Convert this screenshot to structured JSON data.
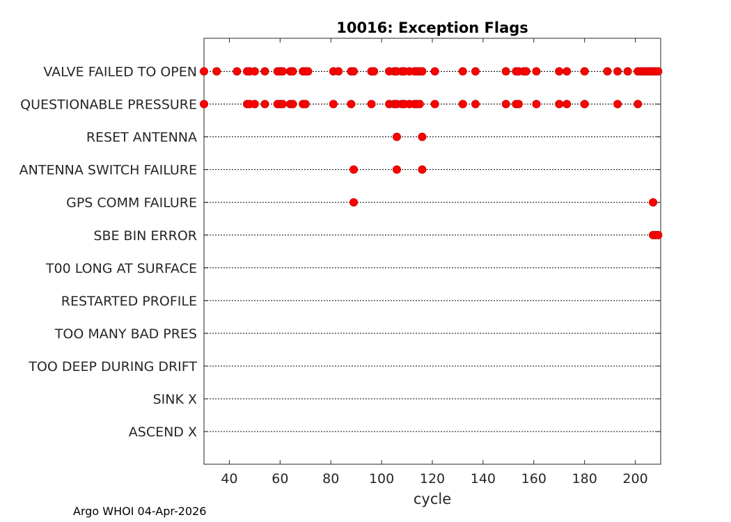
{
  "chart_data": {
    "type": "scatter",
    "title": "10016: Exception Flags",
    "xlabel": "cycle",
    "ylabel": "",
    "xlim": [
      30,
      210
    ],
    "xticks": [
      40,
      60,
      80,
      100,
      120,
      140,
      160,
      180,
      200
    ],
    "grid": "dotted horizontal line per flag",
    "marker_color": "#ff0000",
    "categories": [
      "VALVE FAILED TO OPEN",
      "QUESTIONABLE PRESSURE",
      "RESET ANTENNA",
      "ANTENNA SWITCH FAILURE",
      "GPS COMM FAILURE",
      "SBE BIN ERROR",
      "T00 LONG AT SURFACE",
      "RESTARTED PROFILE",
      "TOO MANY BAD PRES",
      "TOO DEEP DURING DRIFT",
      "SINK X",
      "ASCEND X"
    ],
    "series": [
      {
        "values": [
          30,
          35,
          43,
          47,
          48,
          50,
          54,
          59,
          60,
          61,
          64,
          65,
          69,
          70,
          71,
          81,
          83,
          88,
          89,
          96,
          97,
          103,
          105,
          106,
          108,
          109,
          111,
          113,
          114,
          115,
          116,
          121,
          132,
          137,
          149,
          153,
          154,
          156,
          157,
          161,
          170,
          173,
          180,
          189,
          193,
          197,
          201,
          202,
          203,
          204,
          205,
          206,
          207,
          208,
          209
        ]
      },
      {
        "values": [
          30,
          47,
          48,
          50,
          54,
          59,
          60,
          61,
          64,
          65,
          69,
          70,
          81,
          88,
          96,
          103,
          105,
          106,
          108,
          109,
          111,
          113,
          114,
          115,
          121,
          132,
          137,
          149,
          153,
          154,
          161,
          170,
          173,
          180,
          193,
          201
        ]
      },
      {
        "values": [
          106,
          116
        ]
      },
      {
        "values": [
          89,
          106,
          116
        ]
      },
      {
        "values": [
          89,
          207
        ]
      },
      {
        "values": [
          207,
          208,
          209
        ]
      },
      {
        "values": []
      },
      {
        "values": []
      },
      {
        "values": []
      },
      {
        "values": []
      },
      {
        "values": []
      },
      {
        "values": []
      }
    ]
  },
  "footer": "Argo WHOI 04-Apr-2026"
}
